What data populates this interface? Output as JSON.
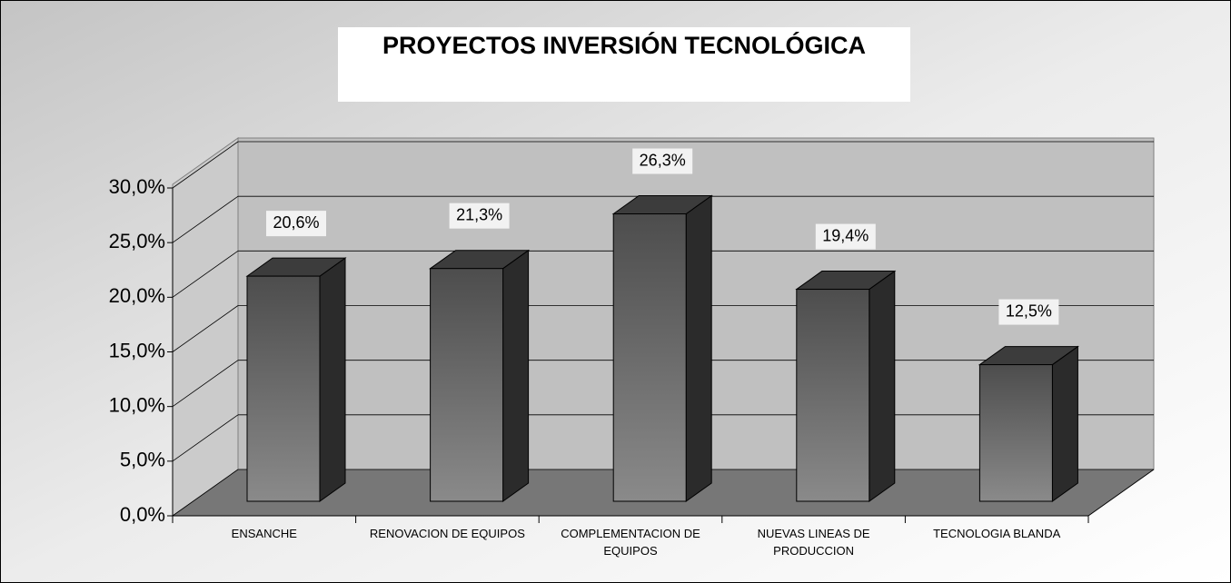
{
  "chart_data": {
    "type": "bar3d",
    "title": "PROYECTOS INVERSIÓN TECNOLÓGICA",
    "categories": [
      "ENSANCHE",
      "RENOVACION DE EQUIPOS",
      "COMPLEMENTACION DE EQUIPOS",
      "NUEVAS LINEAS DE PRODUCCION",
      "TECNOLOGIA BLANDA"
    ],
    "values": [
      20.6,
      21.3,
      26.3,
      19.4,
      12.5
    ],
    "value_labels": [
      "20,6%",
      "21,3%",
      "26,3%",
      "19,4%",
      "12,5%"
    ],
    "color": "#4d4d4d",
    "ylim": [
      0,
      30
    ],
    "yticks": [
      {
        "value": 0,
        "label": "0,0%"
      },
      {
        "value": 5,
        "label": "5,0%"
      },
      {
        "value": 10,
        "label": "10,0%"
      },
      {
        "value": 15,
        "label": "15,0%"
      },
      {
        "value": 20,
        "label": "20,0%"
      },
      {
        "value": 25,
        "label": "25,0%"
      },
      {
        "value": 30,
        "label": "30,0%"
      }
    ],
    "grid": true
  }
}
